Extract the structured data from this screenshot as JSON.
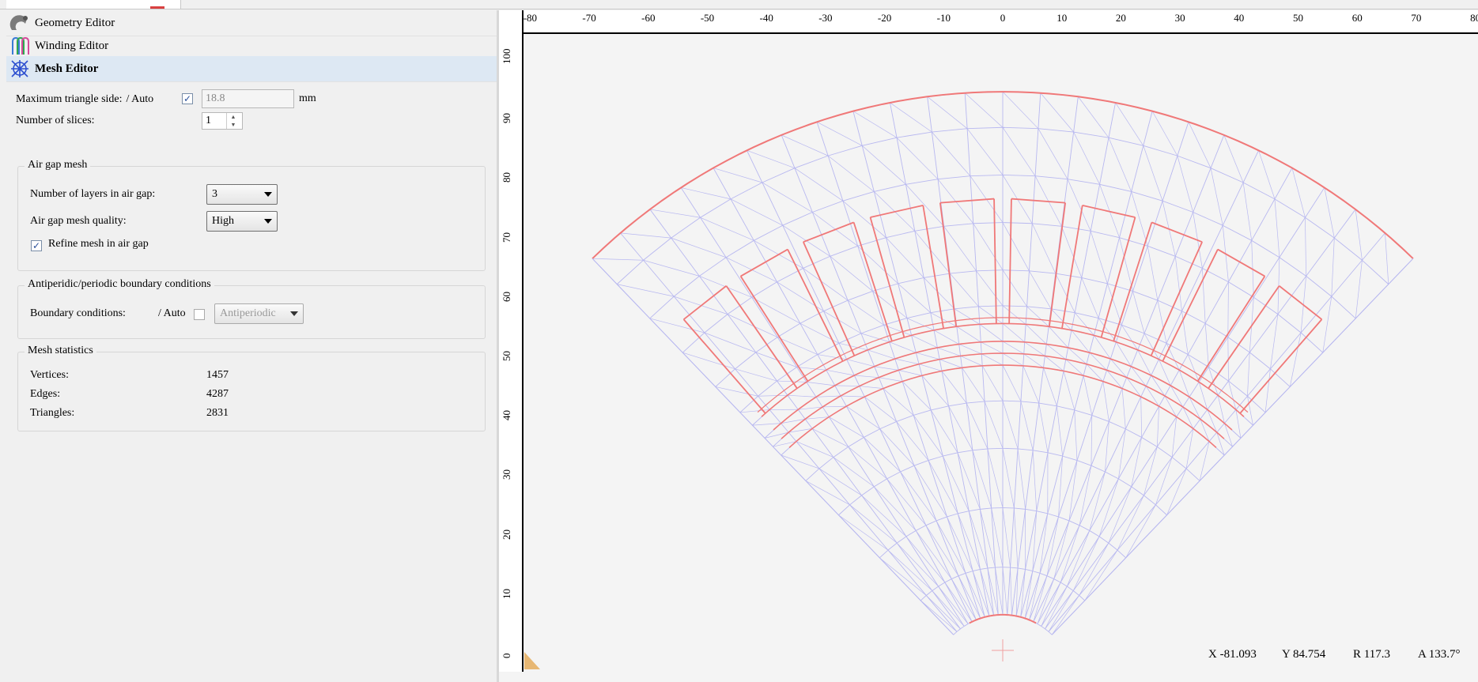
{
  "nav": {
    "items": [
      {
        "label": "Geometry Editor",
        "icon": "geometry-editor-icon"
      },
      {
        "label": "Winding Editor",
        "icon": "winding-editor-icon"
      },
      {
        "label": "Mesh Editor",
        "icon": "mesh-editor-icon",
        "active": true
      }
    ]
  },
  "mesh": {
    "max_triangle_label": "Maximum triangle side:",
    "auto_label": "/ Auto",
    "auto_checked": true,
    "max_triangle_value": "18.8",
    "unit": "mm",
    "slices_label": "Number of slices:",
    "slices_value": "1"
  },
  "air_gap": {
    "title": "Air gap mesh",
    "layers_label": "Number of layers in air gap:",
    "layers_value": "3",
    "quality_label": "Air gap mesh quality:",
    "quality_value": "High",
    "refine_label": "Refine mesh in air gap",
    "refine_checked": true
  },
  "boundary": {
    "title": "Antiperidic/periodic boundary conditions",
    "label": "Boundary conditions:",
    "auto_label": "/ Auto",
    "auto_checked": false,
    "value": "Antiperiodic"
  },
  "stats": {
    "title": "Mesh statistics",
    "vertices_label": "Vertices:",
    "vertices": "1457",
    "edges_label": "Edges:",
    "edges": "4287",
    "triangles_label": "Triangles:",
    "triangles": "2831"
  },
  "ruler": {
    "x_ticks": [
      "-80",
      "-70",
      "-60",
      "-50",
      "-40",
      "-30",
      "-20",
      "-10",
      "0",
      "10",
      "20",
      "30",
      "40",
      "50",
      "60",
      "70",
      "80"
    ],
    "y_ticks": [
      "100",
      "90",
      "80",
      "70",
      "60",
      "50",
      "40",
      "30",
      "20",
      "10",
      "0"
    ]
  },
  "status": {
    "x": "X -81.093",
    "y": "Y 84.754",
    "r": "R 117.3",
    "a": "A 133.7°"
  },
  "colors": {
    "mesh_edge": "#b8b8f0",
    "boundary_edge": "#f07878",
    "panel_bg": "#f0f0f0",
    "active_nav_bg": "#dde8f3"
  }
}
